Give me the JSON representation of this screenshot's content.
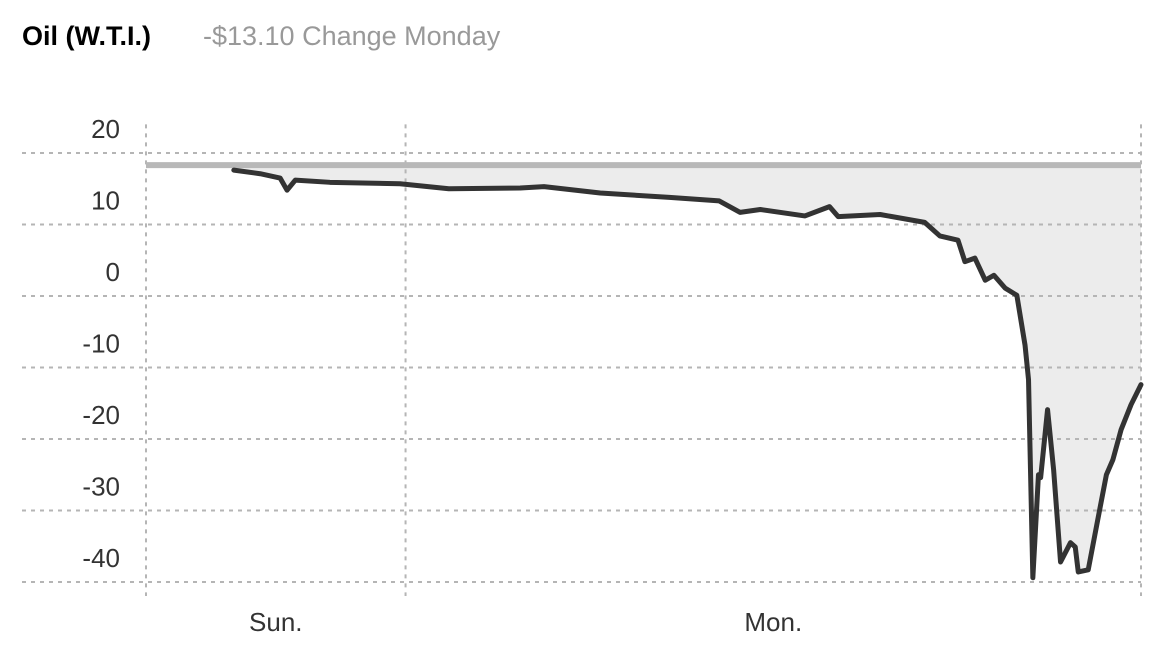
{
  "chart_data": {
    "type": "line",
    "title": "Oil (W.T.I.)",
    "subtitle": "-$13.10 Change Monday",
    "x": [
      2.03,
      2.64,
      3.1,
      3.26,
      3.45,
      4.25,
      5.87,
      7.0,
      8.65,
      9.2,
      10.5,
      12.1,
      13.25,
      13.73,
      14.2,
      15.23,
      15.8,
      16.0,
      16.97,
      18.0,
      18.35,
      18.77,
      18.93,
      19.16,
      19.4,
      19.6,
      19.86,
      20.13,
      20.32,
      20.4,
      20.5,
      20.63,
      20.68,
      20.84,
      20.98,
      21.14,
      21.37,
      21.48,
      21.55,
      21.78,
      22.0,
      22.2,
      22.35,
      22.54,
      22.77,
      23.0
    ],
    "series": [
      {
        "color": "#333333",
        "values": [
          17.6,
          17.1,
          16.5,
          14.8,
          16.2,
          15.9,
          15.7,
          15.0,
          15.1,
          15.3,
          14.4,
          13.8,
          13.3,
          11.7,
          12.1,
          11.2,
          12.5,
          11.1,
          11.4,
          10.3,
          8.4,
          7.8,
          4.8,
          5.3,
          2.2,
          2.9,
          1.1,
          0.1,
          -6.9,
          -11.7,
          -39.4,
          -25.0,
          -25.4,
          -15.9,
          -24.3,
          -37.2,
          -34.5,
          -35.1,
          -38.6,
          -38.3,
          -31.3,
          -25.0,
          -22.9,
          -18.7,
          -15.2,
          -12.4
        ]
      }
    ],
    "reference": 18.3,
    "reference_color": "#b8b8b8",
    "fill_color": "#ececec",
    "xlim": [
      0,
      23
    ],
    "xgrid": [
      0,
      6,
      23
    ],
    "xticks": [
      {
        "value": 3,
        "label": "Sun."
      },
      {
        "value": 14.5,
        "label": "Mon."
      }
    ],
    "ylim": [
      -40,
      24
    ],
    "yticks": [
      20,
      10,
      0,
      -10,
      -20,
      -30,
      -40
    ],
    "grid": true
  }
}
